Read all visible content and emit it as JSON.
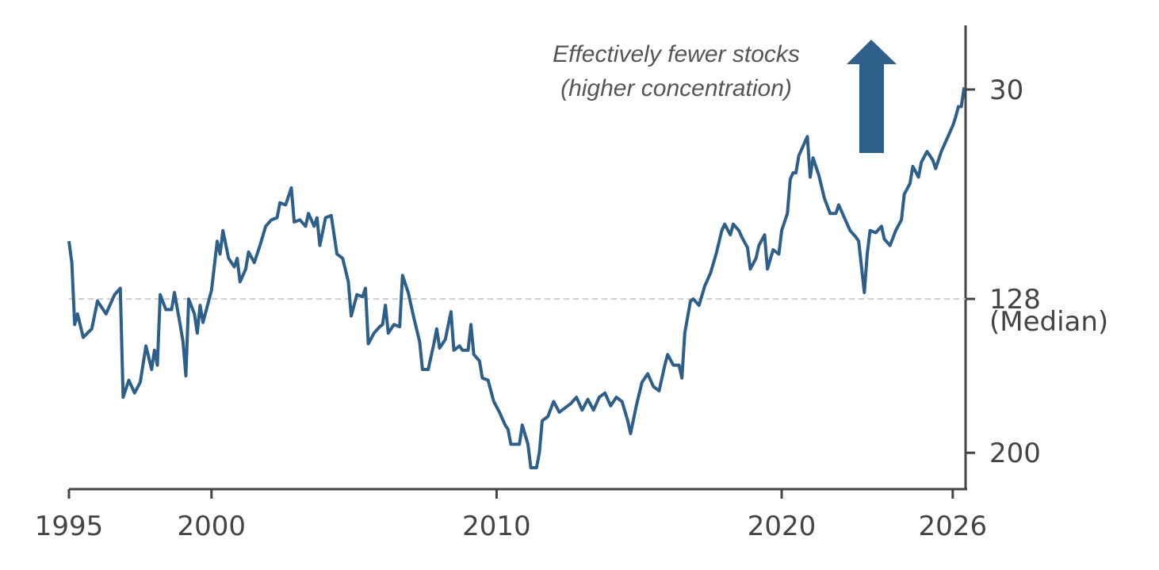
{
  "chart_data": {
    "type": "line",
    "annotation": [
      "Effectively fewer stocks",
      "(higher concentration)"
    ],
    "x": [
      1995.0,
      1995.1,
      1995.2,
      1995.3,
      1995.5,
      1995.8,
      1996.0,
      1996.3,
      1996.6,
      1996.8,
      1996.9,
      1997.1,
      1997.3,
      1997.5,
      1997.7,
      1997.9,
      1998.0,
      1998.1,
      1998.2,
      1998.4,
      1998.6,
      1998.7,
      1998.9,
      1999.0,
      1999.1,
      1999.2,
      1999.4,
      1999.5,
      1999.6,
      1999.7,
      1999.9,
      2000.0,
      2000.2,
      2000.3,
      2000.4,
      2000.6,
      2000.8,
      2000.9,
      2001.0,
      2001.2,
      2001.3,
      2001.5,
      2001.7,
      2001.9,
      2002.1,
      2002.3,
      2002.4,
      2002.6,
      2002.8,
      2002.9,
      2003.1,
      2003.3,
      2003.4,
      2003.6,
      2003.7,
      2003.8,
      2004.0,
      2004.2,
      2004.4,
      2004.6,
      2004.8,
      2004.9,
      2005.1,
      2005.3,
      2005.4,
      2005.5,
      2005.7,
      2005.9,
      2006.0,
      2006.1,
      2006.2,
      2006.4,
      2006.6,
      2006.7,
      2006.9,
      2007.1,
      2007.3,
      2007.4,
      2007.6,
      2007.8,
      2007.9,
      2008.0,
      2008.2,
      2008.4,
      2008.5,
      2008.7,
      2008.8,
      2009.0,
      2009.1,
      2009.2,
      2009.4,
      2009.5,
      2009.7,
      2009.9,
      2010.1,
      2010.3,
      2010.4,
      2010.5,
      2010.7,
      2010.8,
      2010.9,
      2011.1,
      2011.2,
      2011.4,
      2011.5,
      2011.6,
      2011.8,
      2012.0,
      2012.2,
      2012.4,
      2012.6,
      2012.8,
      2013.0,
      2013.2,
      2013.4,
      2013.6,
      2013.8,
      2014.0,
      2014.2,
      2014.4,
      2014.6,
      2014.7,
      2014.9,
      2015.1,
      2015.3,
      2015.5,
      2015.7,
      2015.9,
      2016.0,
      2016.2,
      2016.4,
      2016.5,
      2016.6,
      2016.8,
      2016.9,
      2017.1,
      2017.3,
      2017.5,
      2017.7,
      2017.9,
      2018.0,
      2018.2,
      2018.3,
      2018.5,
      2018.6,
      2018.8,
      2018.9,
      2019.1,
      2019.2,
      2019.4,
      2019.5,
      2019.7,
      2019.9,
      2020.0,
      2020.2,
      2020.3,
      2020.4,
      2020.5,
      2020.6,
      2020.8,
      2020.9,
      2021.0,
      2021.1,
      2021.3,
      2021.5,
      2021.7,
      2021.9,
      2022.0,
      2022.2,
      2022.4,
      2022.6,
      2022.7,
      2022.9,
      2023.0,
      2023.1,
      2023.3,
      2023.5,
      2023.6,
      2023.8,
      2024.0,
      2024.2,
      2024.3,
      2024.5,
      2024.6,
      2024.8,
      2024.9,
      2025.1,
      2025.3,
      2025.4,
      2025.6,
      2025.8,
      2026.0,
      2026.1,
      2026.2,
      2026.3,
      2026.4
    ],
    "series": [
      {
        "color": "#2e5f8a",
        "values": [
          101,
          111,
          140,
          135,
          146,
          142,
          129,
          135,
          126,
          123,
          174,
          166,
          172,
          167,
          150,
          161,
          152,
          159,
          126,
          133,
          133,
          125,
          140,
          148,
          164,
          128,
          135,
          144,
          131,
          139,
          129,
          124,
          101,
          107,
          96,
          109,
          113,
          109,
          120,
          114,
          106,
          111,
          103,
          94,
          91,
          90,
          83,
          84,
          76,
          92,
          91,
          94,
          88,
          94,
          90,
          103,
          90,
          89,
          107,
          109,
          120,
          136,
          126,
          127,
          123,
          149,
          144,
          141,
          140,
          131,
          144,
          140,
          141,
          117,
          125,
          137,
          148,
          161,
          161,
          149,
          142,
          151,
          147,
          134,
          152,
          150,
          152,
          152,
          140,
          154,
          157,
          165,
          166,
          176,
          181,
          187,
          189,
          196,
          196,
          196,
          187,
          196,
          207,
          207,
          200,
          185,
          183,
          176,
          181,
          179,
          177,
          174,
          180,
          175,
          180,
          174,
          172,
          178,
          174,
          176,
          185,
          191,
          178,
          167,
          163,
          169,
          171,
          159,
          154,
          159,
          159,
          165,
          144,
          129,
          128,
          131,
          122,
          116,
          107,
          96,
          93,
          98,
          93,
          96,
          99,
          104,
          114,
          109,
          103,
          98,
          114,
          105,
          107,
          96,
          88,
          72,
          69,
          69,
          61,
          55,
          52,
          71,
          62,
          70,
          81,
          88,
          88,
          84,
          90,
          96,
          99,
          101,
          125,
          107,
          96,
          97,
          94,
          100,
          103,
          96,
          91,
          79,
          74,
          66,
          71,
          64,
          59,
          63,
          67,
          59,
          53,
          47,
          43,
          38,
          38,
          29
        ]
      }
    ],
    "xlim": [
      1995,
      2026.45
    ],
    "xticks": [
      1995,
      2000,
      2010,
      2020,
      2026
    ],
    "ylim": [
      0,
      217
    ],
    "y_inverted": true,
    "y_axis_side": "right",
    "yticks": [
      30,
      128,
      200
    ],
    "reference_line": {
      "value": 128,
      "label": "(Median)"
    }
  }
}
